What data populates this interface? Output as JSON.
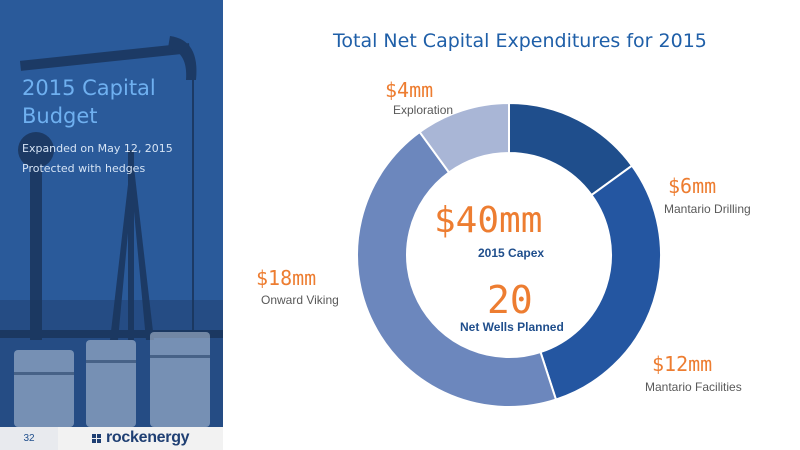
{
  "panel": {
    "title": "2015 Capital Budget",
    "lines": [
      "Expanded on May 12, 2015",
      "Protected with hedges"
    ]
  },
  "footer": {
    "page_number": "32",
    "logo_text": "rockenergy"
  },
  "chart_data": {
    "type": "pie",
    "title": "Total Net Capital Expenditures for 2015",
    "unit": "$mm",
    "slices": [
      {
        "label": "Mantario Drilling",
        "value": 6,
        "value_label": "$6mm",
        "color": "#1f4e8c"
      },
      {
        "label": "Mantario Facilities",
        "value": 12,
        "value_label": "$12mm",
        "color": "#2456a1"
      },
      {
        "label": "Onward Viking",
        "value": 18,
        "value_label": "$18mm",
        "color": "#6c87bd"
      },
      {
        "label": "Exploration",
        "value": 4,
        "value_label": "$4mm",
        "color": "#a9b6d6"
      }
    ],
    "center": {
      "total": "$40mm",
      "total_label": "2015 Capex",
      "wells": "20",
      "wells_label": "Net Wells Planned"
    }
  }
}
